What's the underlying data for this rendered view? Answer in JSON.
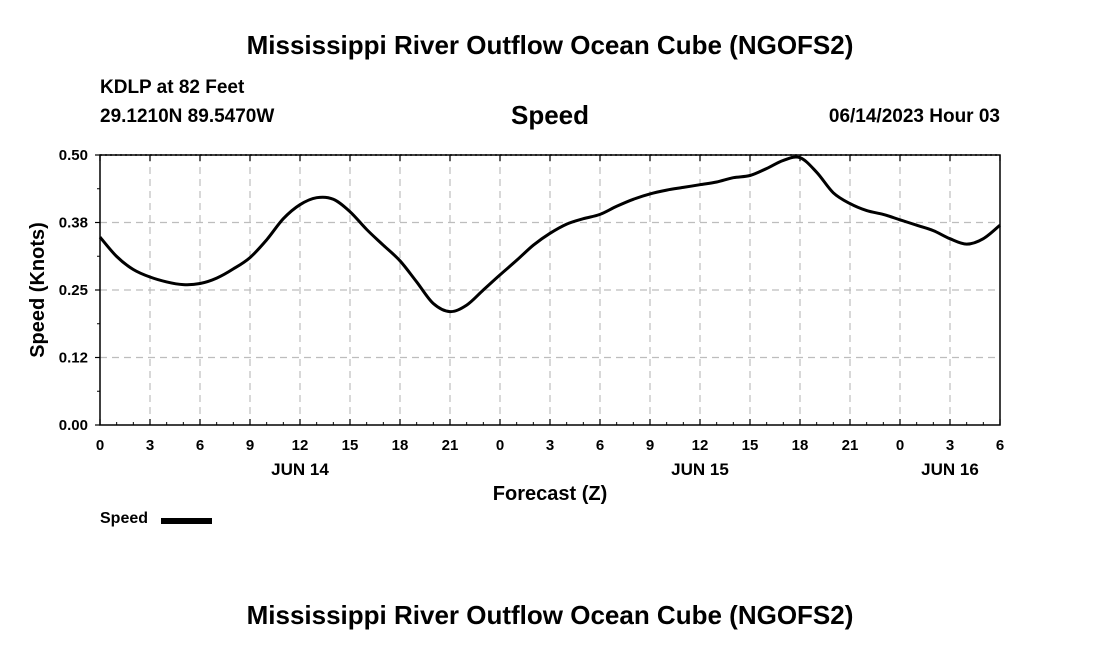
{
  "header": {
    "title_top": "Mississippi River Outflow Ocean Cube (NGOFS2)",
    "title_bottom": "Mississippi River Outflow Ocean Cube (NGOFS2)",
    "station": "KDLP at 82 Feet",
    "coords": "29.1210N  89.5470W",
    "datetime": "06/14/2023 Hour 03"
  },
  "legend": {
    "label": "Speed"
  },
  "chart_data": {
    "type": "line",
    "title": "Speed",
    "xlabel": "Forecast (Z)",
    "ylabel": "Speed (Knots)",
    "xlim": [
      0,
      54
    ],
    "ylim": [
      0,
      0.5
    ],
    "grid": true,
    "x_tick_values": [
      0,
      3,
      6,
      9,
      12,
      15,
      18,
      21,
      24,
      27,
      30,
      33,
      36,
      39,
      42,
      45,
      48,
      51,
      54
    ],
    "x_tick_labels": [
      "0",
      "3",
      "6",
      "9",
      "12",
      "15",
      "18",
      "21",
      "0",
      "3",
      "6",
      "9",
      "12",
      "15",
      "18",
      "21",
      "0",
      "3",
      "6"
    ],
    "y_tick_values": [
      0,
      0.125,
      0.25,
      0.375,
      0.5
    ],
    "y_tick_labels": [
      "0.00",
      "0.12",
      "0.25",
      "0.38",
      "0.50"
    ],
    "day_labels": [
      {
        "x": 12,
        "label": "JUN 14"
      },
      {
        "x": 36,
        "label": "JUN 15"
      },
      {
        "x": 51,
        "label": "JUN 16"
      }
    ],
    "series": [
      {
        "name": "Speed",
        "x": [
          0,
          1,
          2,
          3,
          4,
          5,
          6,
          7,
          8,
          9,
          10,
          11,
          12,
          13,
          14,
          15,
          16,
          17,
          18,
          19,
          20,
          21,
          22,
          23,
          24,
          25,
          26,
          27,
          28,
          29,
          30,
          31,
          32,
          33,
          34,
          35,
          36,
          37,
          38,
          39,
          40,
          41,
          42,
          43,
          44,
          45,
          46,
          47,
          48,
          49,
          50,
          51,
          52,
          53,
          54
        ],
        "values": [
          0.348,
          0.312,
          0.288,
          0.274,
          0.265,
          0.26,
          0.262,
          0.272,
          0.289,
          0.31,
          0.343,
          0.382,
          0.408,
          0.421,
          0.418,
          0.395,
          0.362,
          0.333,
          0.304,
          0.265,
          0.225,
          0.21,
          0.222,
          0.25,
          0.278,
          0.305,
          0.333,
          0.355,
          0.372,
          0.382,
          0.39,
          0.405,
          0.418,
          0.428,
          0.435,
          0.44,
          0.445,
          0.45,
          0.458,
          0.462,
          0.475,
          0.49,
          0.495,
          0.468,
          0.43,
          0.41,
          0.397,
          0.39,
          0.38,
          0.37,
          0.36,
          0.345,
          0.335,
          0.345,
          0.37
        ]
      }
    ]
  }
}
